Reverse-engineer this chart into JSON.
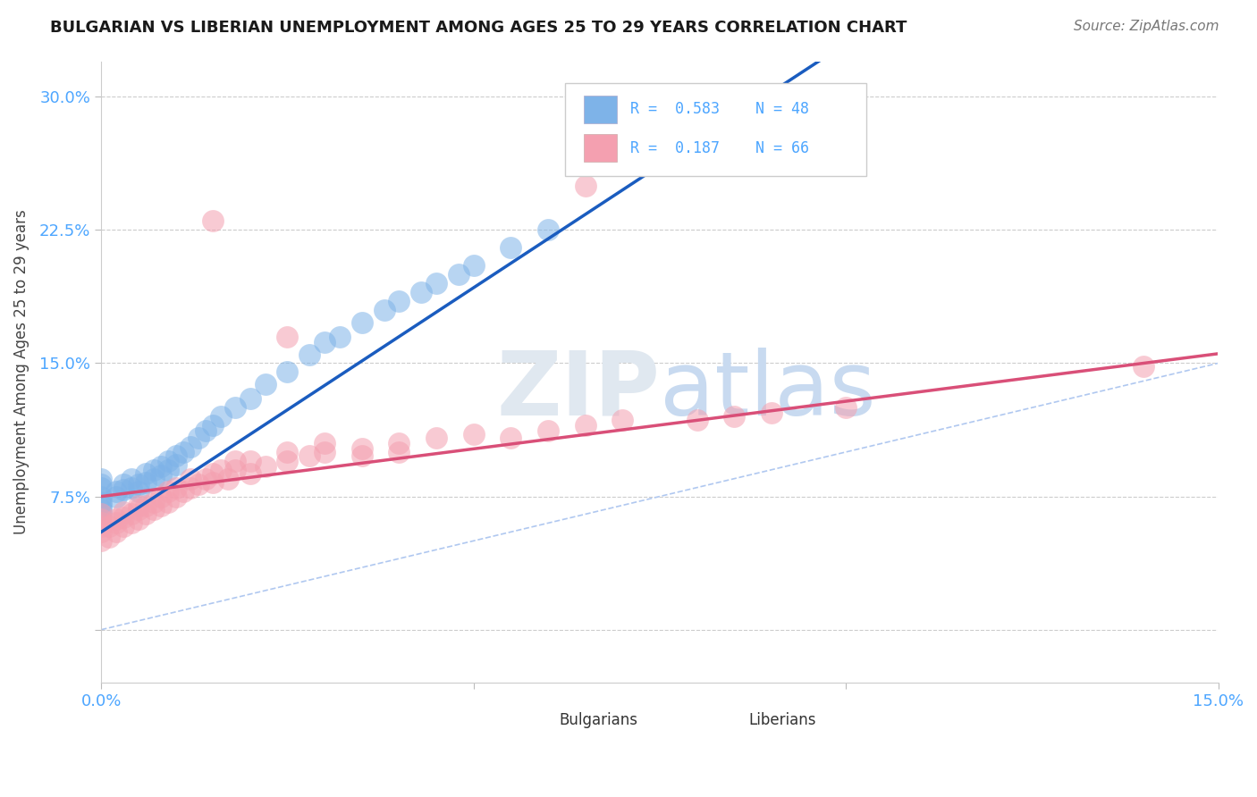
{
  "title": "BULGARIAN VS LIBERIAN UNEMPLOYMENT AMONG AGES 25 TO 29 YEARS CORRELATION CHART",
  "source": "Source: ZipAtlas.com",
  "ylabel": "Unemployment Among Ages 25 to 29 years",
  "xlim": [
    0.0,
    0.15
  ],
  "ylim": [
    -0.03,
    0.32
  ],
  "yticks": [
    0.0,
    0.075,
    0.15,
    0.225,
    0.3
  ],
  "ytick_labels": [
    "",
    "7.5%",
    "15.0%",
    "22.5%",
    "30.0%"
  ],
  "xticks": [
    0.0,
    0.05,
    0.1,
    0.15
  ],
  "xtick_labels": [
    "0.0%",
    "",
    "",
    "15.0%"
  ],
  "bg_color": "#ffffff",
  "grid_color": "#cccccc",
  "bulgarian_color": "#7EB3E8",
  "liberian_color": "#F4A0B0",
  "bulgarian_line_color": "#1a5cbf",
  "liberian_line_color": "#d94f78",
  "diagonal_color": "#b0c8f0",
  "tick_color": "#4da6ff",
  "title_color": "#1a1a1a",
  "source_color": "#777777",
  "ylabel_color": "#444444",
  "watermark_color": "#e0e8f0",
  "bulgarian_R": 0.583,
  "bulgarian_N": 48,
  "liberian_R": 0.187,
  "liberian_N": 66,
  "bulgarian_points": [
    [
      0.0,
      0.075
    ],
    [
      0.0,
      0.08
    ],
    [
      0.0,
      0.082
    ],
    [
      0.0,
      0.085
    ],
    [
      0.0,
      0.072
    ],
    [
      0.0,
      0.068
    ],
    [
      0.0,
      0.07
    ],
    [
      0.0,
      0.065
    ],
    [
      0.002,
      0.078
    ],
    [
      0.002,
      0.075
    ],
    [
      0.003,
      0.082
    ],
    [
      0.003,
      0.079
    ],
    [
      0.004,
      0.085
    ],
    [
      0.004,
      0.08
    ],
    [
      0.005,
      0.082
    ],
    [
      0.005,
      0.078
    ],
    [
      0.006,
      0.088
    ],
    [
      0.006,
      0.083
    ],
    [
      0.007,
      0.09
    ],
    [
      0.007,
      0.085
    ],
    [
      0.008,
      0.092
    ],
    [
      0.008,
      0.087
    ],
    [
      0.009,
      0.095
    ],
    [
      0.009,
      0.09
    ],
    [
      0.01,
      0.098
    ],
    [
      0.01,
      0.093
    ],
    [
      0.011,
      0.1
    ],
    [
      0.012,
      0.103
    ],
    [
      0.013,
      0.108
    ],
    [
      0.014,
      0.112
    ],
    [
      0.015,
      0.115
    ],
    [
      0.016,
      0.12
    ],
    [
      0.018,
      0.125
    ],
    [
      0.02,
      0.13
    ],
    [
      0.022,
      0.138
    ],
    [
      0.025,
      0.145
    ],
    [
      0.028,
      0.155
    ],
    [
      0.03,
      0.162
    ],
    [
      0.032,
      0.165
    ],
    [
      0.035,
      0.173
    ],
    [
      0.038,
      0.18
    ],
    [
      0.04,
      0.185
    ],
    [
      0.043,
      0.19
    ],
    [
      0.045,
      0.195
    ],
    [
      0.048,
      0.2
    ],
    [
      0.05,
      0.205
    ],
    [
      0.055,
      0.215
    ],
    [
      0.06,
      0.225
    ]
  ],
  "liberian_points": [
    [
      0.0,
      0.05
    ],
    [
      0.0,
      0.055
    ],
    [
      0.0,
      0.058
    ],
    [
      0.0,
      0.06
    ],
    [
      0.0,
      0.062
    ],
    [
      0.0,
      0.065
    ],
    [
      0.001,
      0.052
    ],
    [
      0.001,
      0.058
    ],
    [
      0.002,
      0.055
    ],
    [
      0.002,
      0.06
    ],
    [
      0.002,
      0.062
    ],
    [
      0.003,
      0.058
    ],
    [
      0.003,
      0.063
    ],
    [
      0.003,
      0.066
    ],
    [
      0.004,
      0.06
    ],
    [
      0.004,
      0.065
    ],
    [
      0.005,
      0.062
    ],
    [
      0.005,
      0.068
    ],
    [
      0.005,
      0.07
    ],
    [
      0.006,
      0.065
    ],
    [
      0.006,
      0.07
    ],
    [
      0.007,
      0.068
    ],
    [
      0.007,
      0.072
    ],
    [
      0.008,
      0.07
    ],
    [
      0.008,
      0.075
    ],
    [
      0.009,
      0.072
    ],
    [
      0.009,
      0.078
    ],
    [
      0.01,
      0.075
    ],
    [
      0.01,
      0.08
    ],
    [
      0.011,
      0.078
    ],
    [
      0.012,
      0.08
    ],
    [
      0.012,
      0.085
    ],
    [
      0.013,
      0.082
    ],
    [
      0.014,
      0.085
    ],
    [
      0.015,
      0.088
    ],
    [
      0.015,
      0.083
    ],
    [
      0.016,
      0.09
    ],
    [
      0.017,
      0.085
    ],
    [
      0.018,
      0.09
    ],
    [
      0.018,
      0.095
    ],
    [
      0.02,
      0.095
    ],
    [
      0.02,
      0.088
    ],
    [
      0.022,
      0.092
    ],
    [
      0.025,
      0.095
    ],
    [
      0.025,
      0.1
    ],
    [
      0.025,
      0.165
    ],
    [
      0.028,
      0.098
    ],
    [
      0.03,
      0.1
    ],
    [
      0.03,
      0.105
    ],
    [
      0.035,
      0.098
    ],
    [
      0.035,
      0.102
    ],
    [
      0.04,
      0.105
    ],
    [
      0.04,
      0.1
    ],
    [
      0.045,
      0.108
    ],
    [
      0.05,
      0.11
    ],
    [
      0.055,
      0.108
    ],
    [
      0.06,
      0.112
    ],
    [
      0.065,
      0.115
    ],
    [
      0.07,
      0.118
    ],
    [
      0.08,
      0.118
    ],
    [
      0.085,
      0.12
    ],
    [
      0.09,
      0.122
    ],
    [
      0.1,
      0.125
    ],
    [
      0.015,
      0.23
    ],
    [
      0.065,
      0.25
    ],
    [
      0.14,
      0.148
    ]
  ]
}
